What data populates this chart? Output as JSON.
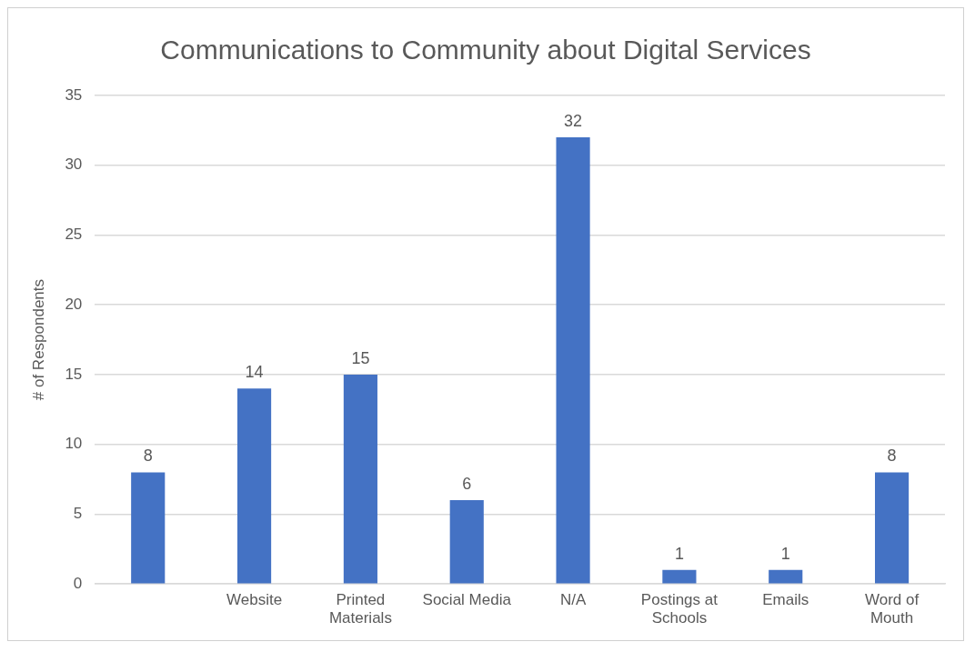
{
  "chart_data": {
    "type": "bar",
    "title": "Communications to Community about Digital Services",
    "ylabel": "# of Respondents",
    "categories": [
      null,
      "Website",
      "Printed Materials",
      "Social Media",
      "N/A",
      "Postings at Schools",
      "Emails",
      "Word of Mouth"
    ],
    "values": [
      8,
      14,
      15,
      6,
      32,
      1,
      1,
      8
    ],
    "color": "#4472c4",
    "ylim": [
      0,
      35
    ],
    "yticks": [
      0,
      5,
      10,
      15,
      20,
      25,
      30,
      35
    ],
    "grid": "y",
    "data_labels": true,
    "legend": false
  }
}
